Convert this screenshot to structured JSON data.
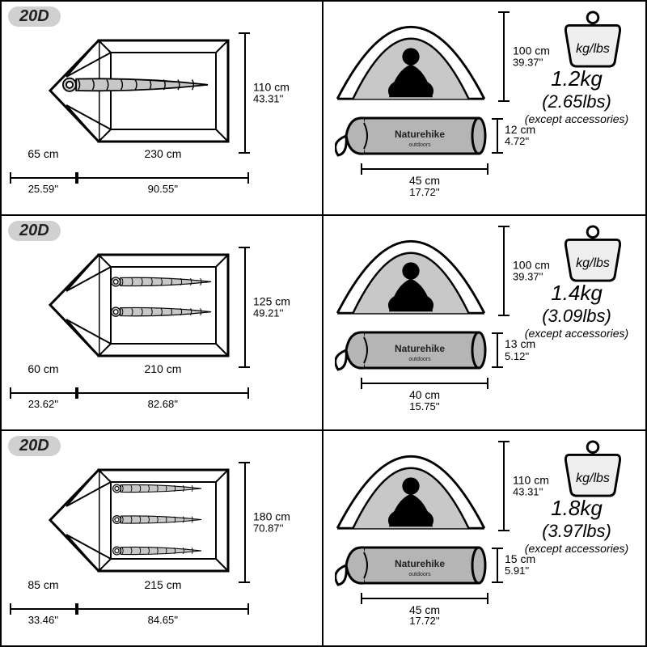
{
  "badge_label": "20D",
  "kglbs_label": "kg/lbs",
  "note": "(except accessories)",
  "brand": "Naturehike",
  "colors": {
    "line": "#000000",
    "fill_grey": "#c8c8c8",
    "fill_light": "#eeeeee",
    "silhouette": "#000000",
    "bag": "#b5b5b5"
  },
  "variants": [
    {
      "sleepers": 1,
      "floor": {
        "width_cm": "110 cm",
        "width_in": "43.31''",
        "vest_cm": "65 cm",
        "vest_in": "25.59''",
        "len_cm": "230 cm",
        "len_in": "90.55''"
      },
      "dome": {
        "h_cm": "100 cm",
        "h_in": "39.37''"
      },
      "pack": {
        "l_cm": "45 cm",
        "l_in": "17.72''",
        "d_cm": "12 cm",
        "d_in": "4.72''"
      },
      "weight": {
        "kg": "1.2kg",
        "lbs": "(2.65lbs)"
      }
    },
    {
      "sleepers": 2,
      "floor": {
        "width_cm": "125 cm",
        "width_in": "49.21''",
        "vest_cm": "60 cm",
        "vest_in": "23.62''",
        "len_cm": "210 cm",
        "len_in": "82.68''"
      },
      "dome": {
        "h_cm": "100 cm",
        "h_in": "39.37''"
      },
      "pack": {
        "l_cm": "40 cm",
        "l_in": "15.75''",
        "d_cm": "13 cm",
        "d_in": "5.12''"
      },
      "weight": {
        "kg": "1.4kg",
        "lbs": "(3.09lbs)"
      }
    },
    {
      "sleepers": 3,
      "floor": {
        "width_cm": "180 cm",
        "width_in": "70.87''",
        "vest_cm": "85 cm",
        "vest_in": "33.46''",
        "len_cm": "215 cm",
        "len_in": "84.65''"
      },
      "dome": {
        "h_cm": "110 cm",
        "h_in": "43.31''"
      },
      "pack": {
        "l_cm": "45 cm",
        "l_in": "17.72''",
        "d_cm": "15 cm",
        "d_in": "5.91''"
      },
      "weight": {
        "kg": "1.8kg",
        "lbs": "(3.97lbs)"
      }
    }
  ]
}
